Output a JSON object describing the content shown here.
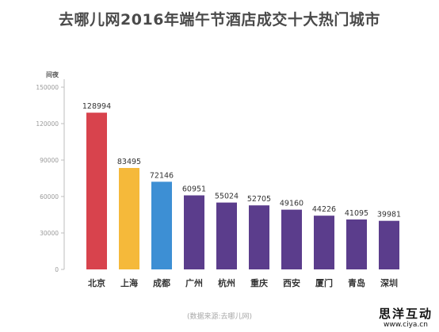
{
  "title": "去哪儿网2016年端午节酒店成交十大热门城市",
  "source": "(数据来源:去哪儿网)",
  "watermark": {
    "text": "思洋互动",
    "url": "www.ciya.cn"
  },
  "chart_data": {
    "type": "bar",
    "title": "去哪儿网2016年端午节酒店成交十大热门城市",
    "ylabel": "间夜",
    "xlabel": "",
    "ylim": [
      0,
      150000
    ],
    "yticks": [
      "0",
      "30000",
      "60000",
      "90000",
      "120000",
      "150000"
    ],
    "grid": false,
    "legend": "none",
    "categories": [
      "北京",
      "上海",
      "成都",
      "广州",
      "杭州",
      "重庆",
      "西安",
      "厦门",
      "青岛",
      "深圳"
    ],
    "values": [
      128994,
      83495,
      72146,
      60951,
      55024,
      52705,
      49160,
      44226,
      41095,
      39981
    ],
    "colors": [
      "#d8434d",
      "#f5b93a",
      "#3d8fd4",
      "#5b3d8c",
      "#5b3d8c",
      "#5b3d8c",
      "#5b3d8c",
      "#5b3d8c",
      "#5b3d8c",
      "#5b3d8c"
    ]
  }
}
